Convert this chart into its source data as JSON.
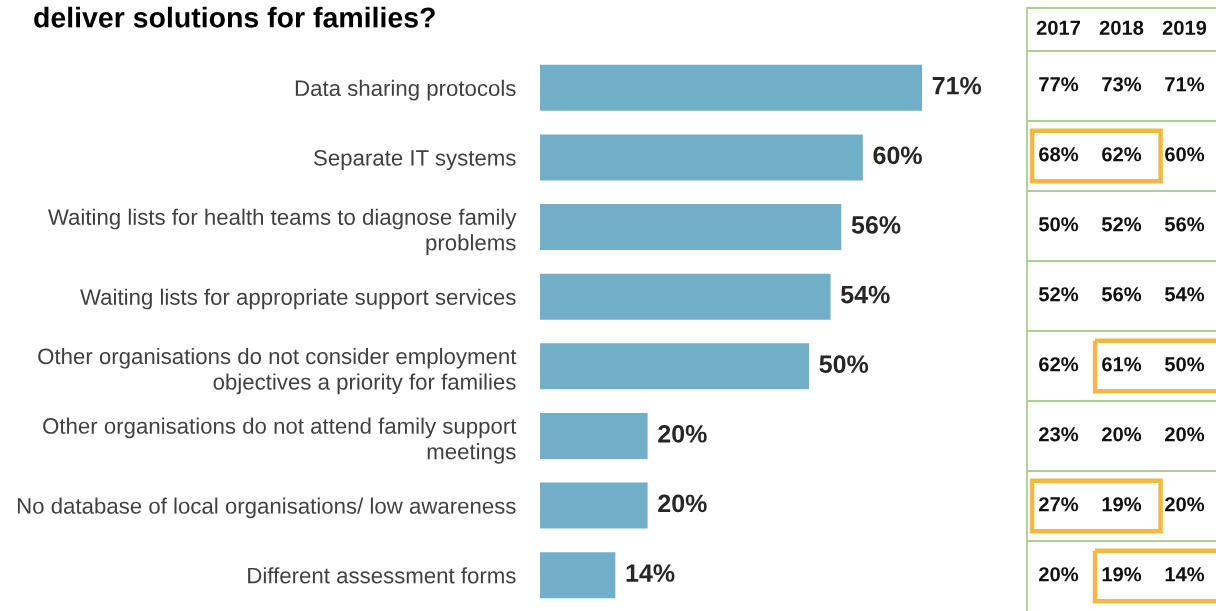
{
  "chart_data": [
    {
      "type": "bar",
      "orientation": "horizontal",
      "title": "deliver solutions for families?",
      "categories": [
        "Data sharing protocols",
        "Separate IT systems",
        "Waiting lists for health teams to diagnose family\nproblems",
        "Waiting lists for appropriate support services",
        "Other organisations do not consider employment\nobjectives a priority for families",
        "Other organisations do not attend family support\nmeetings",
        "No database of local organisations/ low awareness",
        "Different assessment forms"
      ],
      "values": [
        71,
        60,
        56,
        54,
        50,
        20,
        20,
        14
      ],
      "value_labels": [
        "71%",
        "60%",
        "56%",
        "54%",
        "50%",
        "20%",
        "20%",
        "14%"
      ],
      "color": "#71afc9",
      "tick_labels": "y"
    },
    {
      "type": "other",
      "categories": [
        "2017",
        "2018",
        "2019"
      ],
      "annotations": [
        "77%",
        "73%",
        "71%",
        "68%",
        "62%",
        "60%",
        "50%",
        "52%",
        "56%",
        "52%",
        "56%",
        "54%",
        "62%",
        "61%",
        "50%",
        "23%",
        "20%",
        "20%",
        "27%",
        "19%",
        "20%",
        "20%",
        "19%",
        "14%"
      ]
    }
  ]
}
